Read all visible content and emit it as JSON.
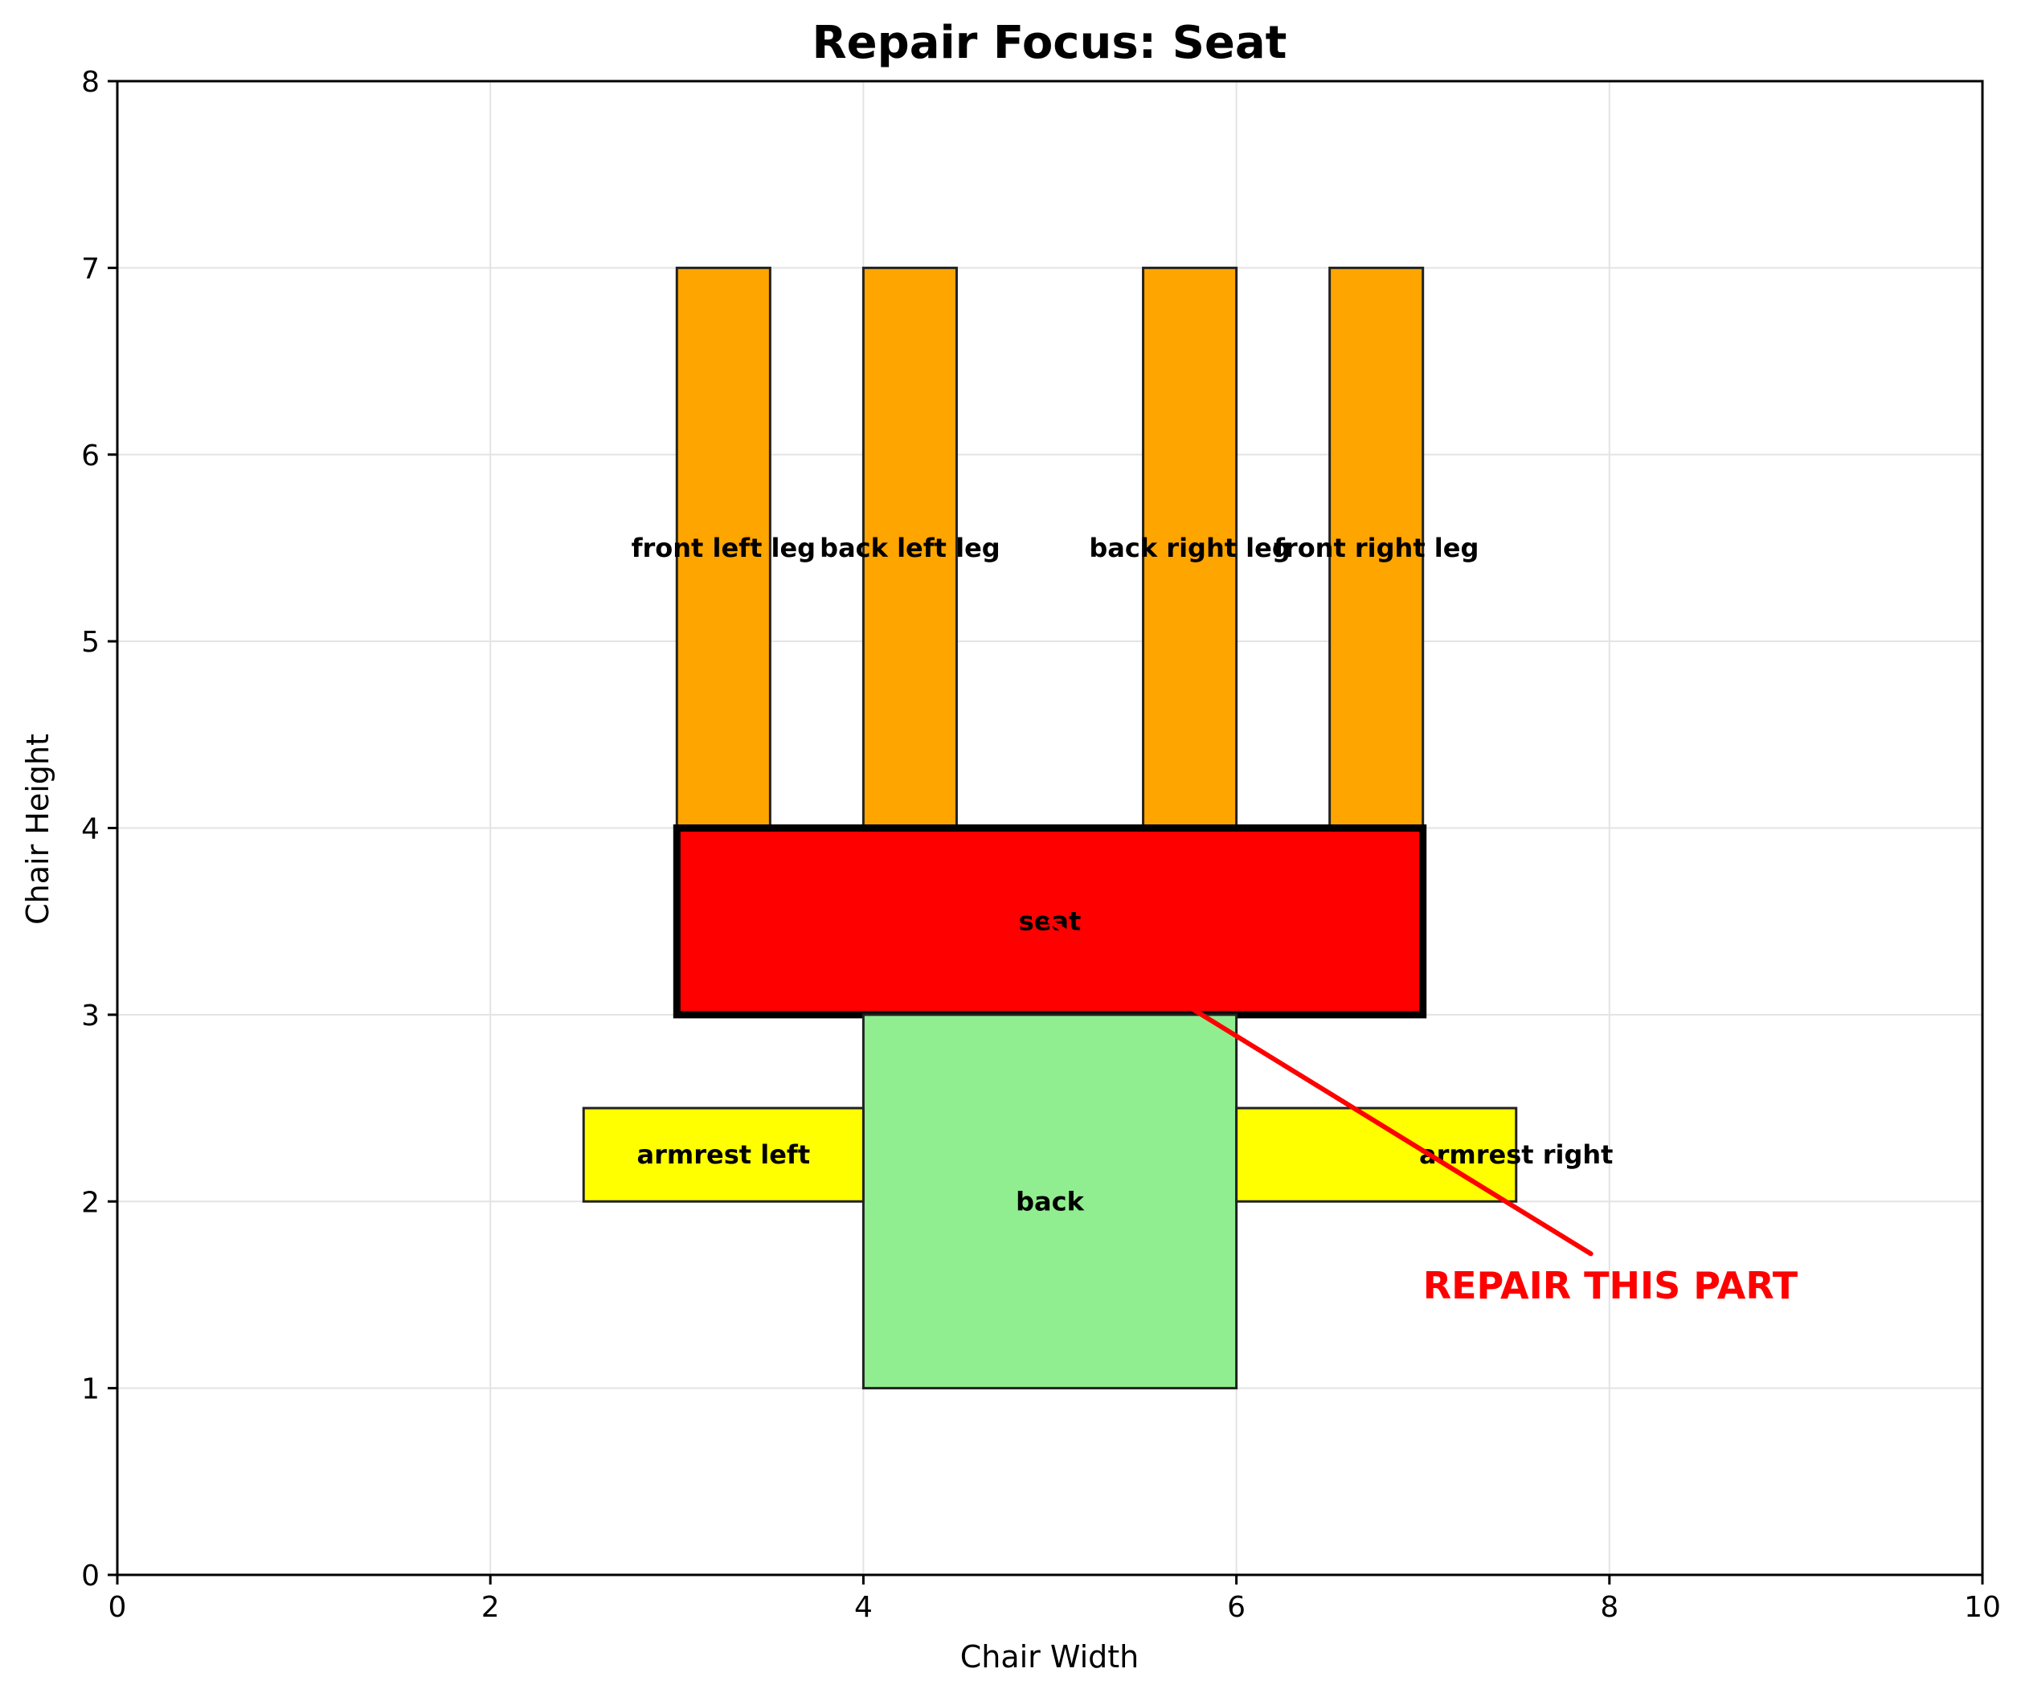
{
  "chart_data": {
    "type": "diagram",
    "title": "Repair Focus: Seat",
    "xlabel": "Chair Width",
    "ylabel": "Chair Height",
    "xlim": [
      0,
      10
    ],
    "ylim": [
      0,
      8
    ],
    "xticks": [
      0,
      2,
      4,
      6,
      8,
      10
    ],
    "yticks": [
      0,
      1,
      2,
      3,
      4,
      5,
      6,
      7,
      8
    ],
    "grid": true,
    "parts": [
      {
        "id": "front-left-leg",
        "label": "front left leg",
        "x": 3.0,
        "y": 4.0,
        "w": 0.5,
        "h": 3.0,
        "color": "#FFA500",
        "highlight": false,
        "label_x": 3.25,
        "label_y": 5.5
      },
      {
        "id": "back-left-leg",
        "label": "back left leg",
        "x": 4.0,
        "y": 4.0,
        "w": 0.5,
        "h": 3.0,
        "color": "#FFA500",
        "highlight": false,
        "label_x": 4.25,
        "label_y": 5.5
      },
      {
        "id": "back-right-leg",
        "label": "back right leg",
        "x": 5.5,
        "y": 4.0,
        "w": 0.5,
        "h": 3.0,
        "color": "#FFA500",
        "highlight": false,
        "label_x": 5.75,
        "label_y": 5.5
      },
      {
        "id": "front-right-leg",
        "label": "front right leg",
        "x": 6.5,
        "y": 4.0,
        "w": 0.5,
        "h": 3.0,
        "color": "#FFA500",
        "highlight": false,
        "label_x": 6.75,
        "label_y": 5.5
      },
      {
        "id": "seat",
        "label": "seat",
        "x": 3.0,
        "y": 3.0,
        "w": 4.0,
        "h": 1.0,
        "color": "#FF0000",
        "highlight": true,
        "label_x": 5.0,
        "label_y": 3.5
      },
      {
        "id": "back",
        "label": "back",
        "x": 4.0,
        "y": 1.0,
        "w": 2.0,
        "h": 2.0,
        "color": "#90EE90",
        "highlight": false,
        "label_x": 5.0,
        "label_y": 2.0
      },
      {
        "id": "armrest-left",
        "label": "armrest left",
        "x": 2.5,
        "y": 2.0,
        "w": 1.5,
        "h": 0.5,
        "color": "#FFFF00",
        "highlight": false,
        "label_x": 3.25,
        "label_y": 2.25
      },
      {
        "id": "armrest-right",
        "label": "armrest right",
        "x": 6.0,
        "y": 2.0,
        "w": 1.5,
        "h": 0.5,
        "color": "#FFFF00",
        "highlight": false,
        "label_x": 7.5,
        "label_y": 2.25
      }
    ],
    "annotation": {
      "text": "REPAIR THIS PART",
      "color": "#FF0000",
      "text_x": 7.0,
      "text_y": 1.55,
      "arrow_from": [
        7.9,
        1.72
      ],
      "arrow_to": [
        5.0,
        3.5
      ]
    }
  }
}
